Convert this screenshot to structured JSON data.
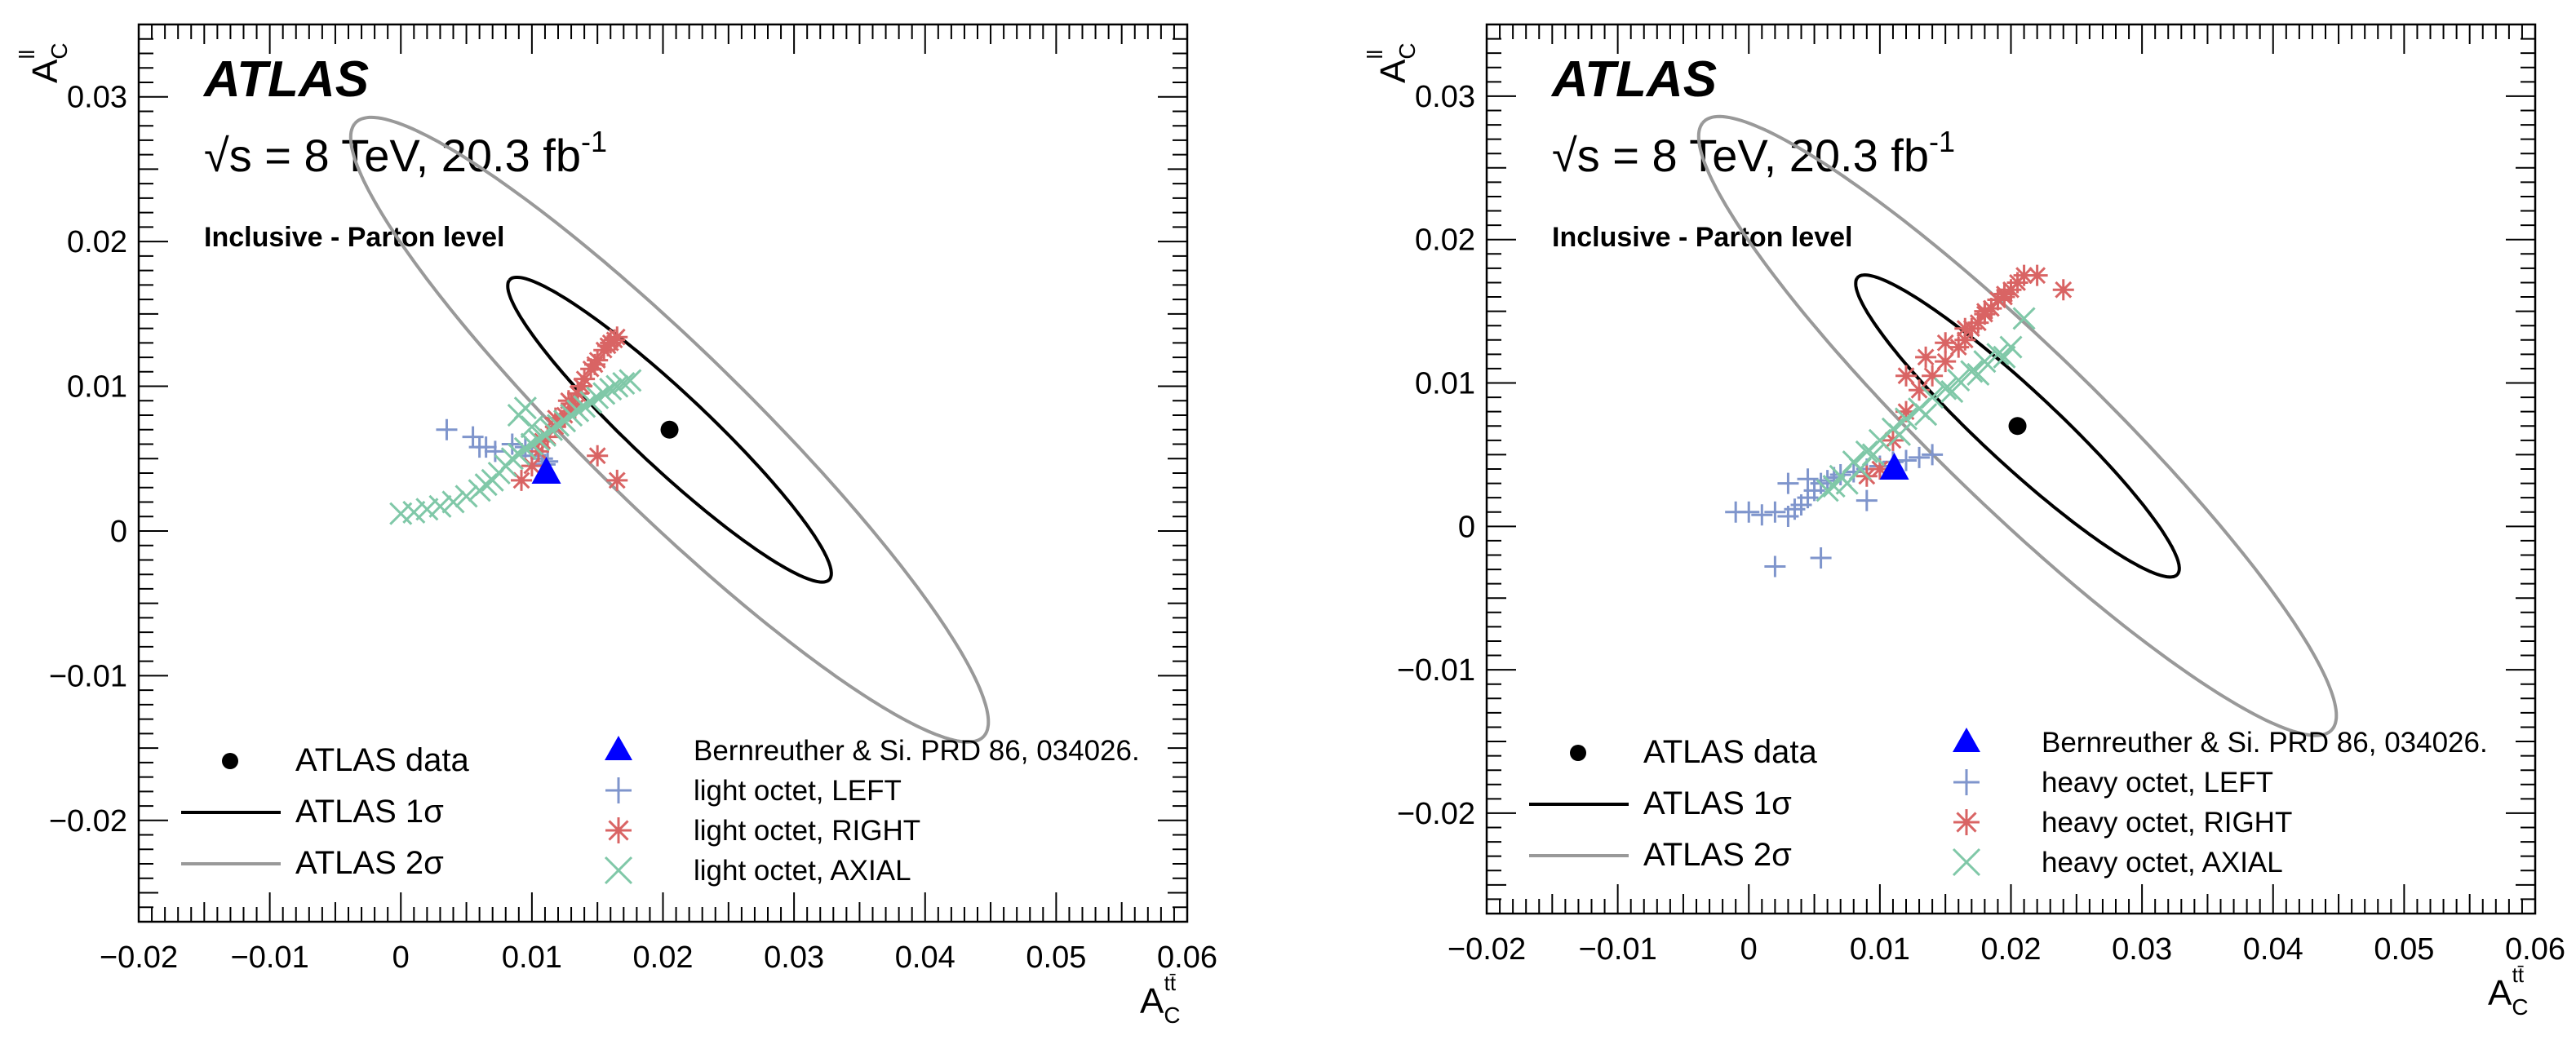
{
  "chart_data": [
    {
      "type": "scatter",
      "panel": "left",
      "brand": "ATLAS",
      "energy_label": "√s = 8 TeV, 20.3 fb",
      "energy_sup": "-1",
      "subtitle": "Inclusive - Parton level",
      "xlabel": "A",
      "xlabel_sub": "C",
      "xlabel_sup": "tt̄",
      "ylabel": "A",
      "ylabel_sub": "C",
      "ylabel_sup": "ll",
      "xlim": [
        -0.02,
        0.06
      ],
      "ylim": [
        -0.027,
        0.035
      ],
      "xticks": [
        -0.02,
        -0.01,
        0,
        0.01,
        0.02,
        0.03,
        0.04,
        0.05,
        0.06
      ],
      "xtick_labels": [
        "−0.02",
        "−0.01",
        "0",
        "0.01",
        "0.02",
        "0.03",
        "0.04",
        "0.05",
        "0.06"
      ],
      "yticks": [
        -0.02,
        -0.01,
        0,
        0.01,
        0.02,
        0.03
      ],
      "ytick_labels": [
        "−0.02",
        "−0.01",
        "0",
        "0.01",
        "0.02",
        "0.03"
      ],
      "data_point": {
        "label": "ATLAS data",
        "x": 0.0205,
        "y": 0.007
      },
      "sm_prediction": {
        "label": "Bernreuther & Si. PRD 86, 034026.",
        "x": 0.0111,
        "y": 0.004
      },
      "ellipses": [
        {
          "label": "ATLAS 1σ",
          "color": "#000000",
          "cx": 0.0205,
          "cy": 0.007,
          "ang": 2.44,
          "ax": 0.016,
          "ay": 0.0027
        },
        {
          "label": "ATLAS 2σ",
          "color": "#999999",
          "cx": 0.0205,
          "cy": 0.007,
          "ang": 2.42,
          "ax": 0.032,
          "ay": 0.0058
        }
      ],
      "series": [
        {
          "name": "light octet, LEFT",
          "marker": "plus",
          "color": "#7f95cc",
          "x": [
            0.0035,
            0.0055,
            0.0065,
            0.0072,
            0.0085,
            0.0095,
            0.01,
            0.0108,
            0.0112,
            0.011,
            0.006
          ],
          "y": [
            0.007,
            0.0065,
            0.0058,
            0.0055,
            0.006,
            0.0058,
            0.0052,
            0.005,
            0.0048,
            0.0046,
            0.0058
          ]
        },
        {
          "name": "light octet, RIGHT",
          "marker": "star",
          "color": "#d96464",
          "x": [
            0.0092,
            0.01,
            0.0105,
            0.0112,
            0.0118,
            0.0125,
            0.013,
            0.0135,
            0.014,
            0.0145,
            0.015,
            0.0155,
            0.016,
            0.0165,
            0.0108,
            0.0118,
            0.0128,
            0.0138,
            0.0148,
            0.0158,
            0.0163,
            0.0133,
            0.015,
            0.0165
          ],
          "y": [
            0.0035,
            0.0045,
            0.0055,
            0.0065,
            0.0072,
            0.008,
            0.0088,
            0.0095,
            0.0105,
            0.0112,
            0.0118,
            0.0125,
            0.013,
            0.0134,
            0.0062,
            0.0078,
            0.009,
            0.01,
            0.0115,
            0.0128,
            0.0132,
            0.0085,
            0.0052,
            0.0035
          ]
        },
        {
          "name": "light octet, AXIAL",
          "marker": "cross",
          "color": "#80c8a8",
          "x": [
            0.0,
            0.001,
            0.002,
            0.003,
            0.004,
            0.005,
            0.006,
            0.0065,
            0.007,
            0.0075,
            0.008,
            0.0085,
            0.009,
            0.0095,
            0.01,
            0.0105,
            0.011,
            0.0115,
            0.012,
            0.0125,
            0.013,
            0.0135,
            0.014,
            0.0145,
            0.015,
            0.0155,
            0.016,
            0.0165,
            0.017,
            0.0175,
            0.009,
            0.0095,
            0.01
          ],
          "y": [
            0.0012,
            0.0013,
            0.0015,
            0.0017,
            0.002,
            0.0024,
            0.0028,
            0.0032,
            0.0035,
            0.004,
            0.0045,
            0.005,
            0.0053,
            0.0057,
            0.006,
            0.0063,
            0.0066,
            0.007,
            0.0073,
            0.0076,
            0.008,
            0.0083,
            0.0086,
            0.0089,
            0.0092,
            0.0095,
            0.0098,
            0.01,
            0.0102,
            0.0104,
            0.008,
            0.0085,
            0.0072
          ]
        }
      ],
      "legend_left": [
        "ATLAS data",
        "ATLAS 1σ",
        "ATLAS 2σ"
      ],
      "legend_right": [
        "Bernreuther & Si. PRD 86, 034026.",
        "light octet, LEFT",
        "light octet, RIGHT",
        "light octet, AXIAL"
      ]
    },
    {
      "type": "scatter",
      "panel": "right",
      "brand": "ATLAS",
      "energy_label": "√s = 8 TeV, 20.3 fb",
      "energy_sup": "-1",
      "subtitle": "Inclusive - Parton level",
      "xlabel": "A",
      "xlabel_sub": "C",
      "xlabel_sup": "tt̄",
      "ylabel": "A",
      "ylabel_sub": "C",
      "ylabel_sup": "ll",
      "xlim": [
        -0.02,
        0.06
      ],
      "ylim": [
        -0.027,
        0.035
      ],
      "xticks": [
        -0.02,
        -0.01,
        0,
        0.01,
        0.02,
        0.03,
        0.04,
        0.05,
        0.06
      ],
      "xtick_labels": [
        "−0.02",
        "−0.01",
        "0",
        "0.01",
        "0.02",
        "0.03",
        "0.04",
        "0.05",
        "0.06"
      ],
      "yticks": [
        -0.02,
        -0.01,
        0,
        0.01,
        0.02,
        0.03
      ],
      "ytick_labels": [
        "−0.02",
        "−0.01",
        "0",
        "0.01",
        "0.02",
        "0.03"
      ],
      "data_point": {
        "label": "ATLAS data",
        "x": 0.0205,
        "y": 0.007
      },
      "sm_prediction": {
        "label": "Bernreuther & Si. PRD 86, 034026.",
        "x": 0.0111,
        "y": 0.004
      },
      "ellipses": [
        {
          "label": "ATLAS 1σ",
          "color": "#000000",
          "cx": 0.0205,
          "cy": 0.007,
          "ang": 2.44,
          "ax": 0.016,
          "ay": 0.0027
        },
        {
          "label": "ATLAS 2σ",
          "color": "#999999",
          "cx": 0.0205,
          "cy": 0.007,
          "ang": 2.42,
          "ax": 0.032,
          "ay": 0.0058
        }
      ],
      "series": [
        {
          "name": "heavy octet, LEFT",
          "marker": "plus",
          "color": "#7f95cc",
          "x": [
            -0.001,
            0.0,
            0.001,
            0.002,
            0.003,
            0.0035,
            0.004,
            0.0045,
            0.005,
            0.0055,
            0.006,
            0.0065,
            0.007,
            0.008,
            0.009,
            0.01,
            0.011,
            0.012,
            0.013,
            0.014,
            0.002,
            0.0055,
            0.009,
            0.003,
            0.0045
          ],
          "y": [
            0.001,
            0.001,
            0.0008,
            0.001,
            0.0007,
            0.0012,
            0.0015,
            0.002,
            0.0025,
            0.003,
            0.0032,
            0.0034,
            0.0036,
            0.0038,
            0.004,
            0.0042,
            0.0045,
            0.0046,
            0.0048,
            0.005,
            -0.0028,
            -0.0022,
            0.0018,
            0.003,
            0.0033
          ]
        },
        {
          "name": "heavy octet, RIGHT",
          "marker": "star",
          "color": "#d96464",
          "x": [
            0.01,
            0.011,
            0.012,
            0.013,
            0.014,
            0.015,
            0.016,
            0.0165,
            0.017,
            0.0175,
            0.018,
            0.0185,
            0.019,
            0.0195,
            0.02,
            0.0205,
            0.021,
            0.022,
            0.024,
            0.012,
            0.0135,
            0.015,
            0.0165,
            0.018,
            0.0195,
            0.009
          ],
          "y": [
            0.004,
            0.006,
            0.008,
            0.0095,
            0.0105,
            0.0115,
            0.0125,
            0.013,
            0.0138,
            0.0142,
            0.0148,
            0.0152,
            0.0158,
            0.0162,
            0.0165,
            0.017,
            0.0175,
            0.0175,
            0.0165,
            0.0105,
            0.0118,
            0.0128,
            0.0138,
            0.015,
            0.016,
            0.0035
          ]
        },
        {
          "name": "heavy octet, AXIAL",
          "marker": "cross",
          "color": "#80c8a8",
          "x": [
            0.006,
            0.007,
            0.008,
            0.009,
            0.01,
            0.011,
            0.012,
            0.013,
            0.014,
            0.015,
            0.016,
            0.017,
            0.018,
            0.019,
            0.02,
            0.021,
            0.0075,
            0.0095,
            0.0115,
            0.0135,
            0.0155,
            0.0175,
            0.0195,
            0.0065,
            0.0085
          ],
          "y": [
            0.0025,
            0.0035,
            0.0045,
            0.0052,
            0.006,
            0.0068,
            0.0075,
            0.0082,
            0.009,
            0.0096,
            0.0102,
            0.0108,
            0.0115,
            0.012,
            0.0125,
            0.0145,
            0.003,
            0.005,
            0.0064,
            0.0078,
            0.0094,
            0.0106,
            0.0118,
            0.0028,
            0.004
          ]
        }
      ],
      "legend_left": [
        "ATLAS data",
        "ATLAS 1σ",
        "ATLAS 2σ"
      ],
      "legend_right": [
        "Bernreuther & Si. PRD 86, 034026.",
        "heavy octet, LEFT",
        "heavy octet, RIGHT",
        "heavy octet, AXIAL"
      ]
    }
  ]
}
